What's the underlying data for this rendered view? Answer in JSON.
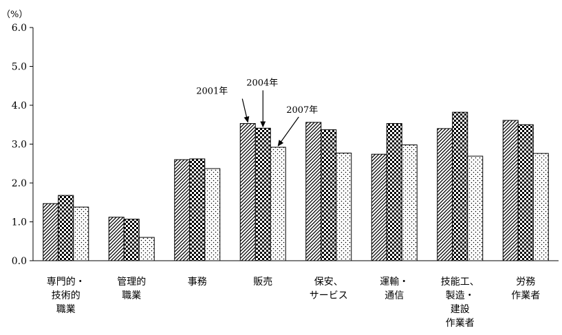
{
  "chart_data": {
    "type": "bar",
    "unit_label": "（%）",
    "ylim": [
      0,
      6
    ],
    "yticks": [
      0,
      1,
      2,
      3,
      4,
      5,
      6
    ],
    "ytick_labels": [
      "0.0",
      "1.0",
      "2.0",
      "3.0",
      "4.0",
      "5.0",
      "6.0"
    ],
    "categories": [
      [
        "専門的・",
        "技術的",
        "職業"
      ],
      [
        "管理的",
        "職業"
      ],
      [
        "事務"
      ],
      [
        "販売"
      ],
      [
        "保安、",
        "サービス"
      ],
      [
        "運輸・",
        "通信"
      ],
      [
        "技能工、",
        "製造・",
        "建設",
        "作業者"
      ],
      [
        "労務",
        "作業者"
      ]
    ],
    "series": [
      {
        "name": "2001年",
        "pattern": "diagonal-hatch",
        "values": [
          1.47,
          1.12,
          2.6,
          3.53,
          3.56,
          2.74,
          3.4,
          3.61
        ]
      },
      {
        "name": "2004年",
        "pattern": "checker",
        "values": [
          1.68,
          1.07,
          2.62,
          3.41,
          3.37,
          3.53,
          3.82,
          3.5
        ]
      },
      {
        "name": "2007年",
        "pattern": "dots",
        "values": [
          1.38,
          0.6,
          2.37,
          2.92,
          2.77,
          2.98,
          2.69,
          2.76
        ]
      }
    ],
    "annotations": [
      {
        "text": "2001年",
        "series": 0,
        "category": 3
      },
      {
        "text": "2004年",
        "series": 1,
        "category": 3
      },
      {
        "text": "2007年",
        "series": 2,
        "category": 3
      }
    ],
    "legend": "none (series labeled by arrow annotations)",
    "grid": false
  }
}
